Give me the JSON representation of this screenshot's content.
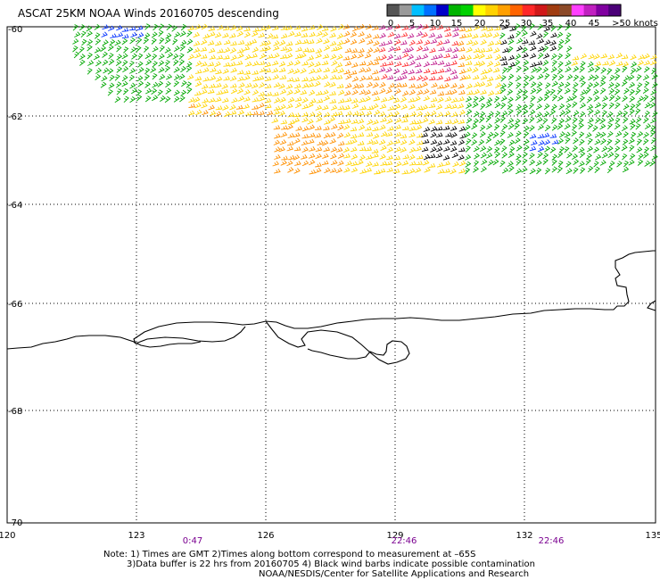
{
  "title": "ASCAT 25KM NOAA Winds 20160705 descending",
  "legend": {
    "labels": [
      "0",
      "5",
      "10",
      "15",
      "20",
      "25",
      "30",
      "35",
      "40",
      "45",
      ">50 knots"
    ],
    "colors": [
      "#555555",
      "#9a9a9a",
      "#00bfff",
      "#0070ff",
      "#0000c8",
      "#00b400",
      "#00d200",
      "#ffff00",
      "#ffd200",
      "#ffa000",
      "#ff6400",
      "#ff2828",
      "#d01818",
      "#a03c10",
      "#8c4a28",
      "#ff40ff",
      "#c020c0",
      "#8000a0",
      "#4b0078"
    ]
  },
  "axes": {
    "lat_labels": [
      "-60",
      "-62",
      "-64",
      "-66",
      "-68",
      "-70"
    ],
    "lon_labels": [
      "120",
      "123",
      "126",
      "129",
      "132",
      "135"
    ]
  },
  "times": [
    "0:47",
    "22:46",
    "22:46"
  ],
  "notes": {
    "line1": "Note: 1) Times are GMT 2)Times along bottom correspond to measurement at –65S",
    "line2": "3)Data buffer is 22 hrs from 20160705 4) Black wind barbs indicate possible contamination",
    "line3": "NOAA/NESDIS/Center for Satellite Applications and Research"
  },
  "wind_colors": {
    "green": "#00a800",
    "yellow": "#ffd400",
    "orange": "#ff9000",
    "red": "#ff3030",
    "magenta": "#c0208f",
    "brown": "#8b4513",
    "blue": "#0030ff",
    "black": "#000000"
  }
}
